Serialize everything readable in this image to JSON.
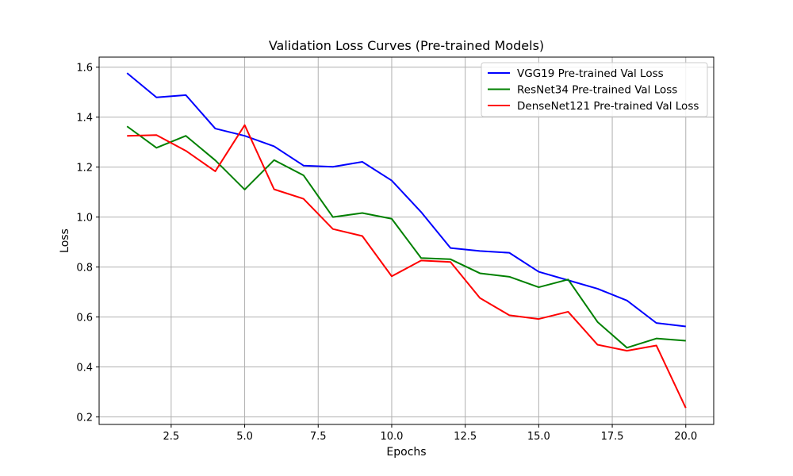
{
  "chart_data": {
    "type": "line",
    "title": "Validation Loss Curves (Pre-trained Models)",
    "xlabel": "Epochs",
    "ylabel": "Loss",
    "xlim": [
      0.05,
      20.95
    ],
    "ylim": [
      0.17,
      1.64
    ],
    "xticks": [
      2.5,
      5.0,
      7.5,
      10.0,
      12.5,
      15.0,
      17.5,
      20.0
    ],
    "xtick_labels": [
      "2.5",
      "5.0",
      "7.5",
      "10.0",
      "12.5",
      "15.0",
      "17.5",
      "20.0"
    ],
    "yticks": [
      0.2,
      0.4,
      0.6,
      0.8,
      1.0,
      1.2,
      1.4,
      1.6
    ],
    "ytick_labels": [
      "0.2",
      "0.4",
      "0.6",
      "0.8",
      "1.0",
      "1.2",
      "1.4",
      "1.6"
    ],
    "grid": true,
    "legend_position": "top-right",
    "x": [
      1,
      2,
      3,
      4,
      5,
      6,
      7,
      8,
      9,
      10,
      11,
      12,
      13,
      14,
      15,
      16,
      17,
      18,
      19,
      20
    ],
    "series": [
      {
        "name": "VGG19 Pre-trained Val Loss",
        "color": "#0000ff",
        "values": [
          1.576,
          1.479,
          1.488,
          1.354,
          1.325,
          1.283,
          1.206,
          1.201,
          1.221,
          1.146,
          1.02,
          0.876,
          0.864,
          0.857,
          0.781,
          0.747,
          0.713,
          0.666,
          0.576,
          0.562
        ]
      },
      {
        "name": "ResNet34 Pre-trained Val Loss",
        "color": "#008000",
        "values": [
          1.363,
          1.277,
          1.325,
          1.227,
          1.11,
          1.228,
          1.167,
          1.0,
          1.016,
          0.993,
          0.836,
          0.831,
          0.775,
          0.761,
          0.719,
          0.75,
          0.58,
          0.477,
          0.514,
          0.505
        ]
      },
      {
        "name": "DenseNet121 Pre-trained Val Loss",
        "color": "#ff0000",
        "values": [
          1.325,
          1.328,
          1.265,
          1.183,
          1.368,
          1.111,
          1.073,
          0.952,
          0.924,
          0.763,
          0.826,
          0.82,
          0.676,
          0.607,
          0.592,
          0.621,
          0.489,
          0.465,
          0.486,
          0.236
        ]
      }
    ]
  }
}
